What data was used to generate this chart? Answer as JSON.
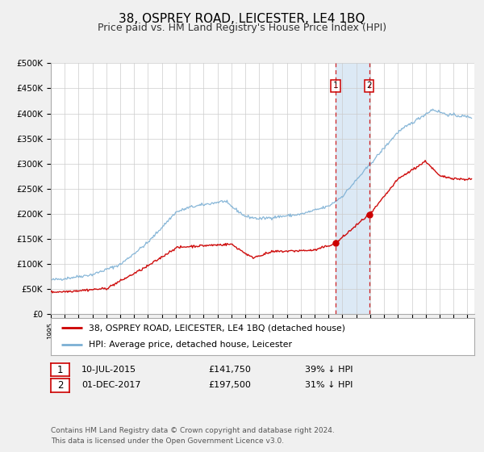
{
  "title": "38, OSPREY ROAD, LEICESTER, LE4 1BQ",
  "subtitle": "Price paid vs. HM Land Registry's House Price Index (HPI)",
  "ylim": [
    0,
    500000
  ],
  "yticks": [
    0,
    50000,
    100000,
    150000,
    200000,
    250000,
    300000,
    350000,
    400000,
    450000,
    500000
  ],
  "ytick_labels": [
    "£0",
    "£50K",
    "£100K",
    "£150K",
    "£200K",
    "£250K",
    "£300K",
    "£350K",
    "£400K",
    "£450K",
    "£500K"
  ],
  "xlim_start": 1995.0,
  "xlim_end": 2025.5,
  "sale1_date": 2015.53,
  "sale1_price": 141750,
  "sale2_date": 2017.92,
  "sale2_price": 197500,
  "sale1_display": "10-JUL-2015",
  "sale1_price_display": "£141,750",
  "sale1_hpi": "39% ↓ HPI",
  "sale2_display": "01-DEC-2017",
  "sale2_price_display": "£197,500",
  "sale2_hpi": "31% ↓ HPI",
  "highlight_color": "#dce9f5",
  "vline_color": "#cc0000",
  "property_line_color": "#cc0000",
  "hpi_line_color": "#7bafd4",
  "legend_label_property": "38, OSPREY ROAD, LEICESTER, LE4 1BQ (detached house)",
  "legend_label_hpi": "HPI: Average price, detached house, Leicester",
  "footer_text": "Contains HM Land Registry data © Crown copyright and database right 2024.\nThis data is licensed under the Open Government Licence v3.0.",
  "background_color": "#f0f0f0",
  "plot_bg_color": "#ffffff",
  "grid_color": "#cccccc",
  "title_fontsize": 11,
  "subtitle_fontsize": 9,
  "tick_fontsize": 7.5,
  "footer_fontsize": 6.5
}
